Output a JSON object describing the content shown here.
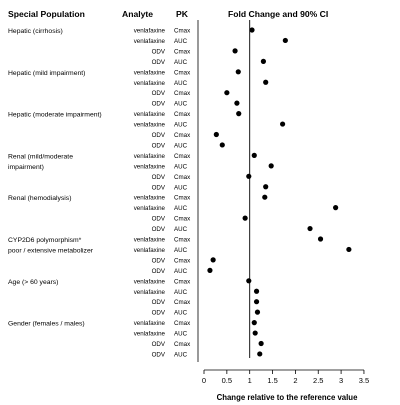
{
  "headers": {
    "population": "Special Population",
    "analyte": "Analyte",
    "pk": "PK",
    "plot": "Fold Change and 90% CI"
  },
  "chart_data": {
    "type": "scatter",
    "orientation": "horizontal",
    "title": "Fold Change and 90% CI",
    "xlabel": "Change relative to the reference value",
    "xlim": [
      0,
      3.5
    ],
    "xticks": [
      0,
      0.5,
      1,
      1.5,
      2,
      2.5,
      3,
      3.5
    ],
    "tick_labels": [
      "0",
      "0.5",
      "1",
      "1.5",
      "2",
      "2.5",
      "3",
      "3.5"
    ],
    "reference_line": 1,
    "grid": false,
    "groups": [
      {
        "label": [
          "Hepatic (cirrhosis)"
        ],
        "rows": [
          {
            "analyte": "venlafaxine",
            "pk": "Cmax",
            "value": 1.05
          },
          {
            "analyte": "venlafaxine",
            "pk": "AUC",
            "value": 1.78
          },
          {
            "analyte": "ODV",
            "pk": "Cmax",
            "value": 0.68
          },
          {
            "analyte": "ODV",
            "pk": "AUC",
            "value": 1.3
          }
        ]
      },
      {
        "label": [
          "Hepatic (mild impairment)"
        ],
        "rows": [
          {
            "analyte": "venlafaxine",
            "pk": "Cmax",
            "value": 0.75
          },
          {
            "analyte": "venlafaxine",
            "pk": "AUC",
            "value": 1.35
          },
          {
            "analyte": "ODV",
            "pk": "Cmax",
            "value": 0.5
          },
          {
            "analyte": "ODV",
            "pk": "AUC",
            "value": 0.72
          }
        ]
      },
      {
        "label": [
          "Hepatic (moderate impairment)"
        ],
        "rows": [
          {
            "analyte": "venlafaxine",
            "pk": "Cmax",
            "value": 0.76
          },
          {
            "analyte": "venlafaxine",
            "pk": "AUC",
            "value": 1.72
          },
          {
            "analyte": "ODV",
            "pk": "Cmax",
            "value": 0.27
          },
          {
            "analyte": "ODV",
            "pk": "AUC",
            "value": 0.4
          }
        ]
      },
      {
        "label": [
          "Renal (mild/moderate",
          "impairment)"
        ],
        "rows": [
          {
            "analyte": "venlafaxine",
            "pk": "Cmax",
            "value": 1.1
          },
          {
            "analyte": "venlafaxine",
            "pk": "AUC",
            "value": 1.47
          },
          {
            "analyte": "ODV",
            "pk": "Cmax",
            "value": 0.98
          },
          {
            "analyte": "ODV",
            "pk": "AUC",
            "value": 1.35
          }
        ]
      },
      {
        "label": [
          "Renal (hemodialysis)"
        ],
        "rows": [
          {
            "analyte": "venlafaxine",
            "pk": "Cmax",
            "value": 1.33
          },
          {
            "analyte": "venlafaxine",
            "pk": "AUC",
            "value": 2.88
          },
          {
            "analyte": "ODV",
            "pk": "Cmax",
            "value": 0.9
          },
          {
            "analyte": "ODV",
            "pk": "AUC",
            "value": 2.32
          }
        ]
      },
      {
        "label": [
          "CYP2D6 polymorphism*",
          "poor / extensive metabolizer"
        ],
        "rows": [
          {
            "analyte": "venlafaxine",
            "pk": "Cmax",
            "value": 2.55
          },
          {
            "analyte": "venlafaxine",
            "pk": "AUC",
            "value": 3.17
          },
          {
            "analyte": "ODV",
            "pk": "Cmax",
            "value": 0.2
          },
          {
            "analyte": "ODV",
            "pk": "AUC",
            "value": 0.13
          }
        ]
      },
      {
        "label": [
          "Age (> 60 years)"
        ],
        "rows": [
          {
            "analyte": "venlafaxine",
            "pk": "Cmax",
            "value": 0.98
          },
          {
            "analyte": "venlafaxine",
            "pk": "AUC",
            "value": 1.15
          },
          {
            "analyte": "ODV",
            "pk": "Cmax",
            "value": 1.15
          },
          {
            "analyte": "ODV",
            "pk": "AUC",
            "value": 1.17
          }
        ]
      },
      {
        "label": [
          "Gender (females / males)"
        ],
        "rows": [
          {
            "analyte": "venlafaxine",
            "pk": "Cmax",
            "value": 1.1
          },
          {
            "analyte": "venlafaxine",
            "pk": "AUC",
            "value": 1.12
          },
          {
            "analyte": "ODV",
            "pk": "Cmax",
            "value": 1.25
          },
          {
            "analyte": "ODV",
            "pk": "AUC",
            "value": 1.22
          }
        ]
      }
    ]
  }
}
